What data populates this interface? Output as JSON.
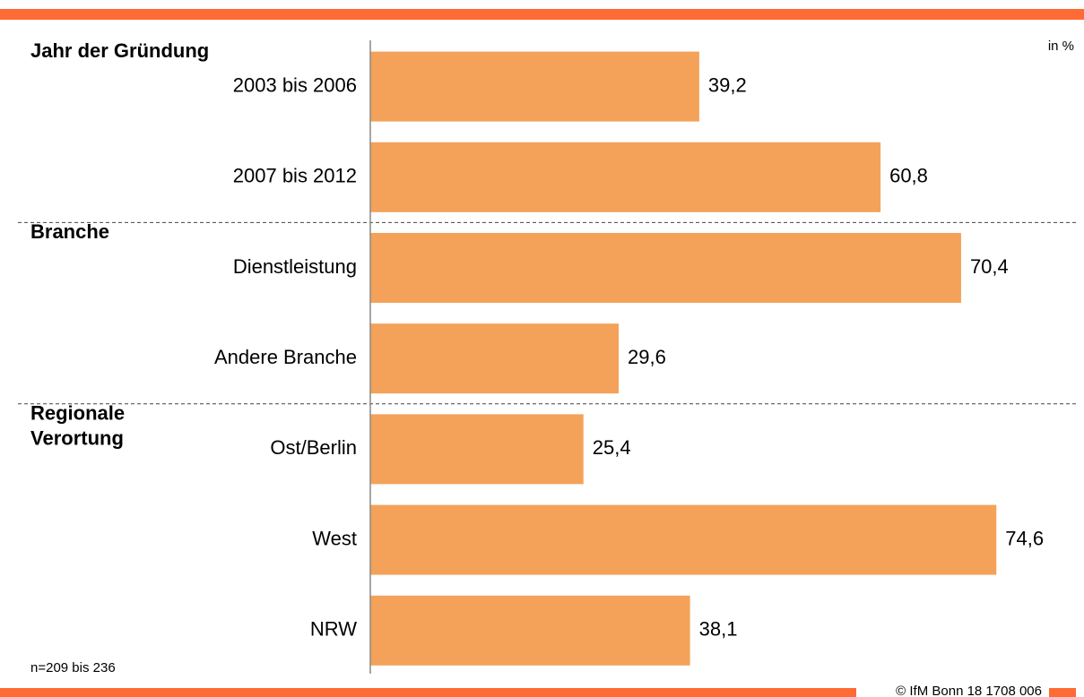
{
  "chart_data": {
    "type": "bar",
    "orientation": "horizontal",
    "color": "#f4a259",
    "unit_label": "in %",
    "note": "n=209 bis 236",
    "footer": "© IfM Bonn 18 1708 006",
    "groups": [
      {
        "name": [
          "Jahr der Gründung"
        ],
        "categories": [
          "2003 bis 2006",
          "2007 bis 2012"
        ],
        "values": [
          39.2,
          60.8
        ],
        "value_labels": [
          "39,2",
          "60,8"
        ]
      },
      {
        "name": [
          "Branche"
        ],
        "categories": [
          "Dienstleistung",
          "Andere Branche"
        ],
        "values": [
          70.4,
          29.6
        ],
        "value_labels": [
          "70,4",
          "29,6"
        ]
      },
      {
        "name": [
          "Regionale",
          "Verortung"
        ],
        "categories": [
          "Ost/Berlin",
          "West",
          "NRW"
        ],
        "values": [
          25.4,
          74.6,
          38.1
        ],
        "value_labels": [
          "25,4",
          "74,6",
          "38,1"
        ]
      }
    ]
  }
}
